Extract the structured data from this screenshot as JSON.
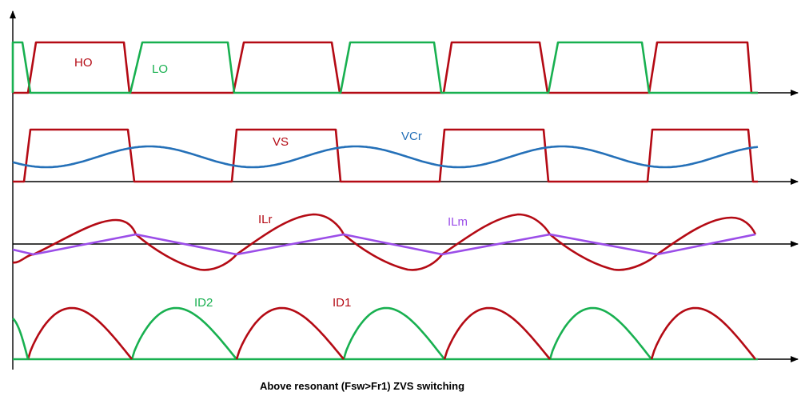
{
  "caption": "Above resonant (Fsw>Fr1) ZVS switching",
  "colors": {
    "red": "#B40A14",
    "green": "#18B050",
    "blue": "#2470B8",
    "purple": "#9B4DE8",
    "axis": "#000000"
  },
  "traces": {
    "ho": "HO",
    "lo": "LO",
    "vs": "VS",
    "vcr": "VCr",
    "ilr": "ILr",
    "ilm": "ILm",
    "id2": "ID2",
    "id1": "ID1"
  }
}
